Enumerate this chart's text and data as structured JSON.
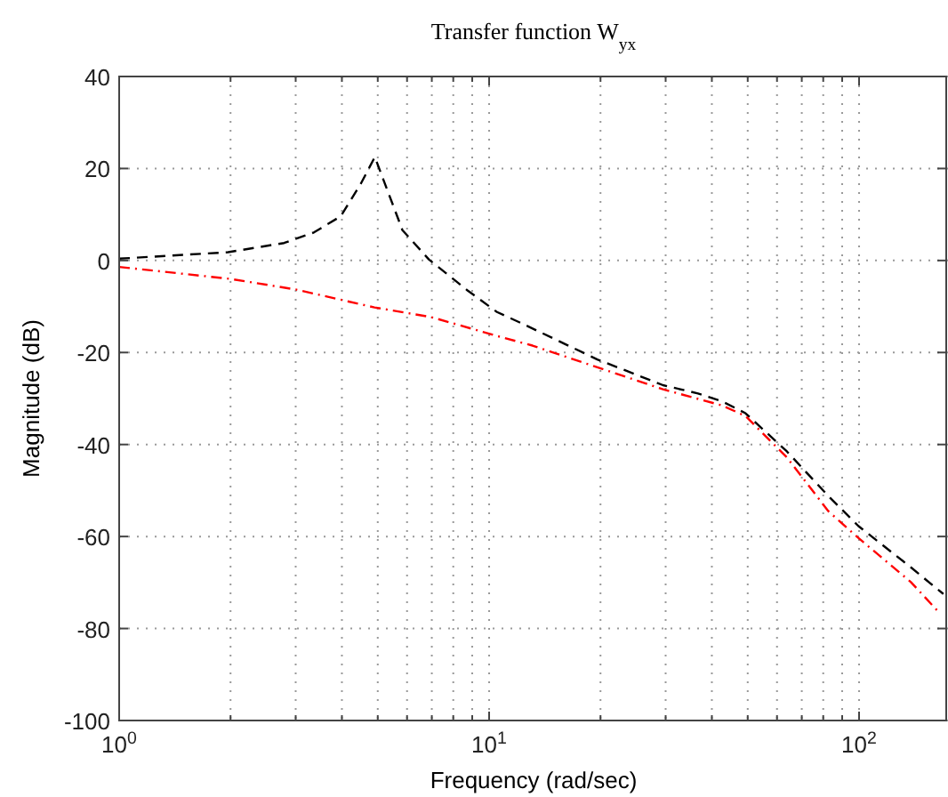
{
  "chart_data": {
    "type": "line",
    "title": "Transfer function W$_{yx}$",
    "xlabel": "Frequency  (rad/sec)",
    "ylabel": "Magnitude (dB)",
    "log": "x",
    "grid": true,
    "xlim": [
      1,
      172
    ],
    "ylim": [
      -100,
      40
    ],
    "xticks": [
      {
        "value": 1,
        "label": "10$^{0}$"
      },
      {
        "value": 2,
        "label": null
      },
      {
        "value": 3,
        "label": null
      },
      {
        "value": 4,
        "label": null
      },
      {
        "value": 5,
        "label": null
      },
      {
        "value": 6,
        "label": null
      },
      {
        "value": 7,
        "label": null
      },
      {
        "value": 8,
        "label": null
      },
      {
        "value": 9,
        "label": null
      },
      {
        "value": 10,
        "label": "10$^{1}$"
      },
      {
        "value": 20,
        "label": null
      },
      {
        "value": 30,
        "label": null
      },
      {
        "value": 40,
        "label": null
      },
      {
        "value": 50,
        "label": null
      },
      {
        "value": 60,
        "label": null
      },
      {
        "value": 70,
        "label": null
      },
      {
        "value": 80,
        "label": null
      },
      {
        "value": 90,
        "label": null
      },
      {
        "value": 100,
        "label": "10$^{2}$"
      }
    ],
    "yticks": [
      -100,
      -80,
      -60,
      -40,
      -20,
      0,
      20,
      40
    ],
    "series": [
      {
        "color": "#000000",
        "line_style": "dashed",
        "x": [
          1,
          1.97,
          2.79,
          3.36,
          3.97,
          4.5,
          4.91,
          5.83,
          6.88,
          8.74,
          10.5,
          12.2,
          19.6,
          29.5,
          36.7,
          42.6,
          49.3,
          63.8,
          82.6,
          99.5,
          138,
          169
        ],
        "values": [
          0.4,
          1.8,
          3.8,
          6.1,
          9.6,
          16.7,
          22.5,
          6.6,
          0.2,
          -6.5,
          -11.2,
          -13.6,
          -21.5,
          -27.1,
          -28.9,
          -30.6,
          -33.2,
          -41.5,
          -51.2,
          -57.7,
          -66.7,
          -72.5
        ]
      },
      {
        "color": "#ff0000",
        "line_style": "dashdot",
        "x": [
          1,
          2,
          3,
          4.9,
          6.97,
          10.5,
          13.1,
          19.6,
          29.5,
          42.6,
          49.3,
          63.8,
          82.6,
          99.5,
          138,
          164
        ],
        "values": [
          -1.4,
          -4,
          -6.3,
          -10.2,
          -12.3,
          -16.4,
          -18.5,
          -23.2,
          -28,
          -31.5,
          -33.8,
          -42.8,
          -54.5,
          -60.3,
          -69.9,
          -76.4
        ]
      }
    ]
  }
}
